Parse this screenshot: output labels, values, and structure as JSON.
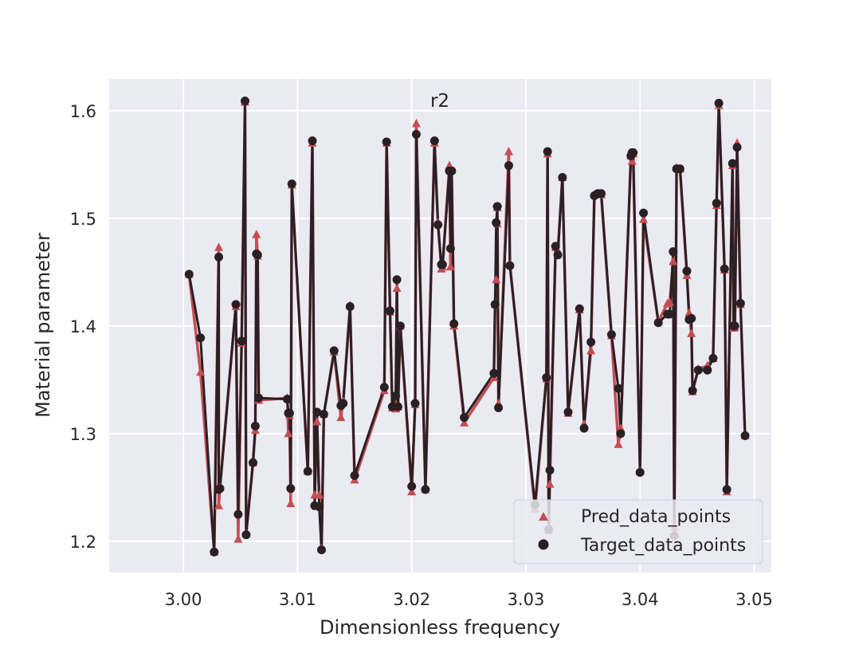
{
  "chart_data": {
    "type": "line",
    "title": "r2",
    "xlabel": "Dimensionless frequency",
    "ylabel": "Material parameter",
    "xlim": [
      2.9935,
      3.0515
    ],
    "ylim": [
      1.171,
      1.6295
    ],
    "xticks": [
      3.0,
      3.01,
      3.02,
      3.03,
      3.04,
      3.05
    ],
    "xtick_labels": [
      "3.00",
      "3.01",
      "3.02",
      "3.03",
      "3.04",
      "3.05"
    ],
    "yticks": [
      1.2,
      1.3,
      1.4,
      1.5,
      1.6
    ],
    "ytick_labels": [
      "1.2",
      "1.3",
      "1.4",
      "1.5",
      "1.6"
    ],
    "grid": true,
    "legend_position": "lower-right",
    "colors": {
      "background": "#eaeaf2",
      "grid": "#ffffff",
      "pred": "#c44e52",
      "target": "#2a2024"
    },
    "series": [
      {
        "name": "Pred_data_points",
        "marker": "triangle",
        "x": [
          3.0005,
          3.0015,
          3.0027,
          3.0031,
          3.0031,
          3.0032,
          3.0046,
          3.0048,
          3.0051,
          3.0054,
          3.0055,
          3.0061,
          3.0063,
          3.0064,
          3.0065,
          3.0066,
          3.0091,
          3.0092,
          3.0093,
          3.0094,
          3.0095,
          3.0109,
          3.0113,
          3.0115,
          3.0117,
          3.0119,
          3.0121,
          3.0123,
          3.0132,
          3.0138,
          3.014,
          3.0146,
          3.015,
          3.0176,
          3.0178,
          3.0181,
          3.0183,
          3.0186,
          3.0187,
          3.0188,
          3.019,
          3.02,
          3.0203,
          3.0204,
          3.0212,
          3.022,
          3.0223,
          3.0226,
          3.0227,
          3.0233,
          3.0234,
          3.0235,
          3.0237,
          3.0246,
          3.0272,
          3.0273,
          3.0274,
          3.0275,
          3.0275,
          3.0276,
          3.0285,
          3.0286,
          3.0308,
          3.0318,
          3.0319,
          3.032,
          3.0321,
          3.0326,
          3.0328,
          3.0332,
          3.0337,
          3.0347,
          3.0351,
          3.0357,
          3.036,
          3.0363,
          3.0366,
          3.0375,
          3.0381,
          3.0383,
          3.0392,
          3.0393,
          3.0394,
          3.04,
          3.0403,
          3.0416,
          3.0424,
          3.0426,
          3.0429,
          3.043,
          3.0432,
          3.0435,
          3.0441,
          3.0443,
          3.0445,
          3.0446,
          3.0451,
          3.0459,
          3.0464,
          3.0467,
          3.0469,
          3.0474,
          3.0476,
          3.0481,
          3.0482,
          3.0483,
          3.0485,
          3.0488,
          3.0492
        ],
        "values": [
          1.448,
          1.357,
          1.19,
          1.473,
          1.233,
          1.25,
          1.418,
          1.202,
          1.384,
          1.608,
          1.207,
          1.273,
          1.303,
          1.485,
          1.465,
          1.331,
          1.333,
          1.3,
          1.317,
          1.235,
          1.531,
          1.265,
          1.57,
          1.243,
          1.311,
          1.243,
          1.193,
          1.318,
          1.376,
          1.315,
          1.33,
          1.419,
          1.257,
          1.34,
          1.57,
          1.413,
          1.324,
          1.323,
          1.435,
          1.325,
          1.4,
          1.246,
          1.327,
          1.588,
          1.248,
          1.57,
          1.496,
          1.453,
          1.455,
          1.549,
          1.455,
          1.545,
          1.4,
          1.31,
          1.352,
          1.42,
          1.443,
          1.495,
          1.51,
          1.328,
          1.562,
          1.457,
          1.23,
          1.351,
          1.56,
          1.21,
          1.253,
          1.473,
          1.47,
          1.538,
          1.319,
          1.415,
          1.309,
          1.377,
          1.522,
          1.522,
          1.522,
          1.391,
          1.29,
          1.305,
          1.558,
          1.553,
          1.56,
          1.265,
          1.499,
          1.404,
          1.421,
          1.422,
          1.46,
          1.213,
          1.547,
          1.546,
          1.447,
          1.412,
          1.393,
          1.339,
          1.36,
          1.363,
          1.37,
          1.512,
          1.605,
          1.452,
          1.246,
          1.549,
          1.398,
          1.399,
          1.57,
          1.42,
          1.298
        ]
      },
      {
        "name": "Target_data_points",
        "marker": "circle",
        "x": [
          3.0005,
          3.0015,
          3.0027,
          3.0031,
          3.0031,
          3.0032,
          3.0046,
          3.0048,
          3.0051,
          3.0054,
          3.0055,
          3.0061,
          3.0063,
          3.0064,
          3.0065,
          3.0066,
          3.0091,
          3.0092,
          3.0093,
          3.0094,
          3.0095,
          3.0109,
          3.0113,
          3.0115,
          3.0117,
          3.0119,
          3.0121,
          3.0123,
          3.0132,
          3.0138,
          3.014,
          3.0146,
          3.015,
          3.0176,
          3.0178,
          3.0181,
          3.0183,
          3.0186,
          3.0187,
          3.0188,
          3.019,
          3.02,
          3.0203,
          3.0204,
          3.0212,
          3.022,
          3.0223,
          3.0226,
          3.0227,
          3.0233,
          3.0234,
          3.0235,
          3.0237,
          3.0246,
          3.0272,
          3.0273,
          3.0274,
          3.0275,
          3.0275,
          3.0276,
          3.0285,
          3.0286,
          3.0308,
          3.0318,
          3.0319,
          3.032,
          3.0321,
          3.0326,
          3.0328,
          3.0332,
          3.0337,
          3.0347,
          3.0351,
          3.0357,
          3.036,
          3.0363,
          3.0366,
          3.0375,
          3.0381,
          3.0383,
          3.0392,
          3.0393,
          3.0394,
          3.04,
          3.0403,
          3.0416,
          3.0424,
          3.0426,
          3.0429,
          3.043,
          3.0432,
          3.0435,
          3.0441,
          3.0443,
          3.0445,
          3.0446,
          3.0451,
          3.0459,
          3.0464,
          3.0467,
          3.0469,
          3.0474,
          3.0476,
          3.0481,
          3.0482,
          3.0483,
          3.0485,
          3.0488,
          3.0492
        ],
        "values": [
          1.448,
          1.389,
          1.19,
          1.464,
          1.248,
          1.249,
          1.42,
          1.225,
          1.386,
          1.609,
          1.206,
          1.273,
          1.307,
          1.467,
          1.466,
          1.333,
          1.332,
          1.319,
          1.319,
          1.249,
          1.532,
          1.265,
          1.572,
          1.233,
          1.32,
          1.232,
          1.192,
          1.318,
          1.377,
          1.326,
          1.328,
          1.418,
          1.261,
          1.343,
          1.571,
          1.414,
          1.325,
          1.335,
          1.443,
          1.325,
          1.4,
          1.251,
          1.328,
          1.578,
          1.248,
          1.572,
          1.494,
          1.457,
          1.457,
          1.544,
          1.472,
          1.544,
          1.402,
          1.315,
          1.356,
          1.42,
          1.496,
          1.511,
          1.511,
          1.324,
          1.549,
          1.456,
          1.234,
          1.352,
          1.562,
          1.211,
          1.266,
          1.474,
          1.466,
          1.538,
          1.32,
          1.416,
          1.305,
          1.385,
          1.521,
          1.523,
          1.523,
          1.392,
          1.342,
          1.3,
          1.558,
          1.561,
          1.561,
          1.264,
          1.505,
          1.403,
          1.411,
          1.411,
          1.469,
          1.205,
          1.546,
          1.546,
          1.451,
          1.406,
          1.407,
          1.34,
          1.359,
          1.359,
          1.37,
          1.514,
          1.607,
          1.453,
          1.248,
          1.551,
          1.4,
          1.4,
          1.566,
          1.421,
          1.298
        ]
      }
    ]
  }
}
